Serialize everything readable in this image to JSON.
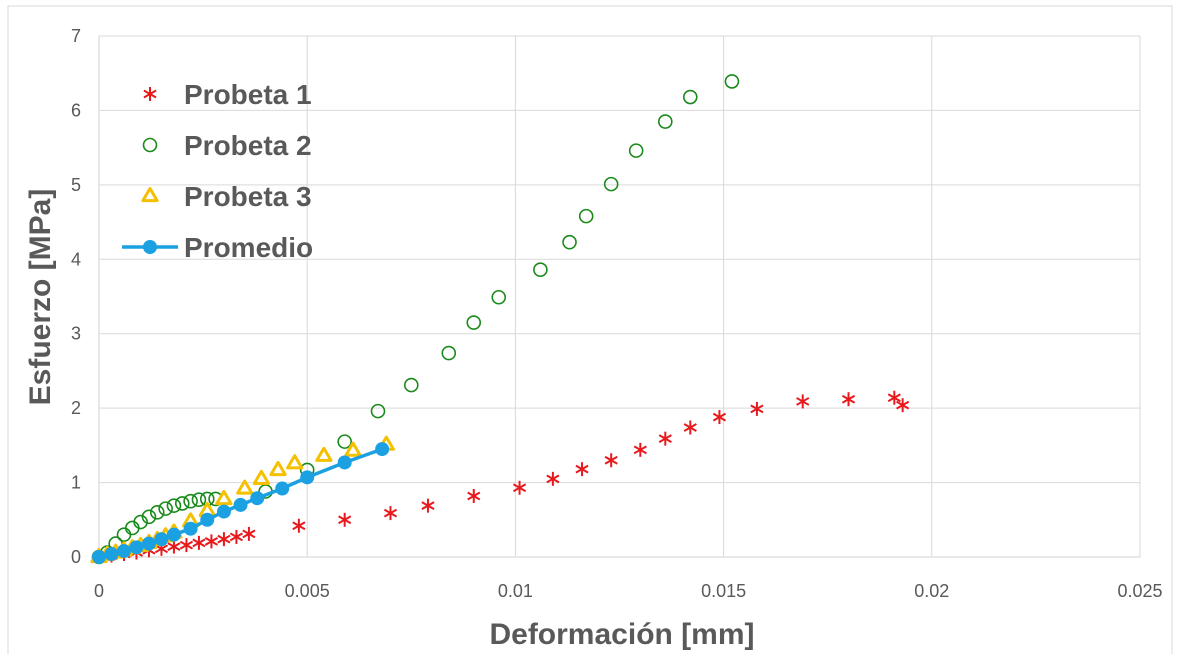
{
  "chart_data": {
    "type": "scatter",
    "title": "",
    "xlabel": "Deformación [mm]",
    "ylabel": "Esfuerzo [MPa]",
    "xlim": [
      0,
      0.025
    ],
    "ylim": [
      0,
      7
    ],
    "x_ticks": [
      "0",
      "0.005",
      "0.01",
      "0.015",
      "0.02",
      "0.025"
    ],
    "y_ticks": [
      "0",
      "1",
      "2",
      "3",
      "4",
      "5",
      "6",
      "7"
    ],
    "grid": true,
    "legend_position": "top-left",
    "series": [
      {
        "name": "Probeta 1",
        "marker": "asterisk",
        "color": "#e8191c",
        "points": [
          [
            0,
            0
          ],
          [
            0.0003,
            0.02
          ],
          [
            0.0006,
            0.04
          ],
          [
            0.0009,
            0.06
          ],
          [
            0.0012,
            0.09
          ],
          [
            0.0015,
            0.11
          ],
          [
            0.0018,
            0.14
          ],
          [
            0.0021,
            0.16
          ],
          [
            0.0024,
            0.19
          ],
          [
            0.0027,
            0.21
          ],
          [
            0.003,
            0.24
          ],
          [
            0.0033,
            0.27
          ],
          [
            0.0036,
            0.31
          ],
          [
            0.0048,
            0.42
          ],
          [
            0.0059,
            0.5
          ],
          [
            0.007,
            0.59
          ],
          [
            0.0079,
            0.69
          ],
          [
            0.009,
            0.82
          ],
          [
            0.0101,
            0.93
          ],
          [
            0.0109,
            1.05
          ],
          [
            0.0116,
            1.18
          ],
          [
            0.0123,
            1.3
          ],
          [
            0.013,
            1.44
          ],
          [
            0.0136,
            1.59
          ],
          [
            0.0142,
            1.74
          ],
          [
            0.0149,
            1.88
          ],
          [
            0.0158,
            1.99
          ],
          [
            0.0169,
            2.09
          ],
          [
            0.018,
            2.12
          ],
          [
            0.0191,
            2.14
          ],
          [
            0.0193,
            2.04
          ]
        ]
      },
      {
        "name": "Probeta 2",
        "marker": "circle",
        "color": "#1a8a1a",
        "points": [
          [
            0,
            0
          ],
          [
            0.0002,
            0.06
          ],
          [
            0.0004,
            0.18
          ],
          [
            0.0006,
            0.3
          ],
          [
            0.0008,
            0.39
          ],
          [
            0.001,
            0.47
          ],
          [
            0.0012,
            0.54
          ],
          [
            0.0014,
            0.6
          ],
          [
            0.0016,
            0.65
          ],
          [
            0.0018,
            0.69
          ],
          [
            0.002,
            0.72
          ],
          [
            0.0022,
            0.75
          ],
          [
            0.0024,
            0.77
          ],
          [
            0.0026,
            0.78
          ],
          [
            0.0028,
            0.78
          ],
          [
            0.004,
            0.88
          ],
          [
            0.005,
            1.17
          ],
          [
            0.0059,
            1.55
          ],
          [
            0.0067,
            1.96
          ],
          [
            0.0075,
            2.31
          ],
          [
            0.0084,
            2.74
          ],
          [
            0.009,
            3.15
          ],
          [
            0.0096,
            3.49
          ],
          [
            0.0106,
            3.86
          ],
          [
            0.0113,
            4.23
          ],
          [
            0.0117,
            4.58
          ],
          [
            0.0123,
            5.01
          ],
          [
            0.0129,
            5.46
          ],
          [
            0.0136,
            5.85
          ],
          [
            0.0142,
            6.18
          ],
          [
            0.0152,
            6.39
          ]
        ]
      },
      {
        "name": "Probeta 3",
        "marker": "triangle",
        "color": "#f5c000",
        "points": [
          [
            0,
            0
          ],
          [
            0.0002,
            0.03
          ],
          [
            0.0004,
            0.06
          ],
          [
            0.0006,
            0.09
          ],
          [
            0.0008,
            0.12
          ],
          [
            0.001,
            0.15
          ],
          [
            0.0012,
            0.19
          ],
          [
            0.0014,
            0.23
          ],
          [
            0.0016,
            0.28
          ],
          [
            0.0018,
            0.33
          ],
          [
            0.0022,
            0.48
          ],
          [
            0.0026,
            0.62
          ],
          [
            0.003,
            0.78
          ],
          [
            0.0035,
            0.92
          ],
          [
            0.0039,
            1.05
          ],
          [
            0.0043,
            1.17
          ],
          [
            0.0047,
            1.26
          ],
          [
            0.0054,
            1.36
          ],
          [
            0.0061,
            1.43
          ],
          [
            0.0069,
            1.51
          ]
        ]
      },
      {
        "name": "Promedio",
        "marker": "dot-line",
        "color": "#1ba1e2",
        "points": [
          [
            0,
            0
          ],
          [
            0.0003,
            0.04
          ],
          [
            0.0006,
            0.08
          ],
          [
            0.0009,
            0.13
          ],
          [
            0.0012,
            0.18
          ],
          [
            0.0015,
            0.24
          ],
          [
            0.0018,
            0.3
          ],
          [
            0.0022,
            0.38
          ],
          [
            0.0026,
            0.5
          ],
          [
            0.003,
            0.61
          ],
          [
            0.0034,
            0.7
          ],
          [
            0.0038,
            0.79
          ],
          [
            0.0044,
            0.92
          ],
          [
            0.005,
            1.07
          ],
          [
            0.0059,
            1.27
          ],
          [
            0.0068,
            1.45
          ]
        ]
      }
    ]
  }
}
